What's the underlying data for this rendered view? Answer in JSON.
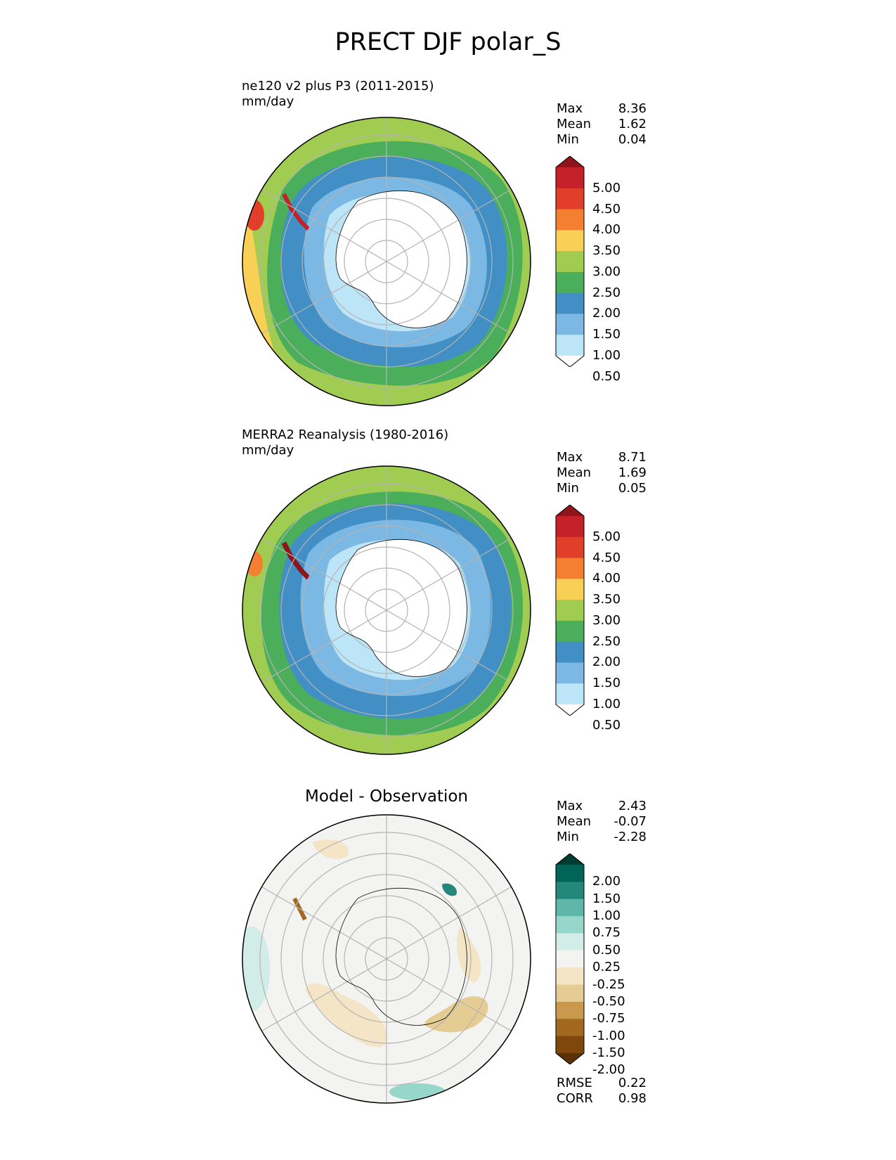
{
  "title": "PRECT DJF polar_S",
  "panels": [
    {
      "id": "test",
      "label_line1": "ne120 v2 plus P3 (2011-2015)",
      "label_line2": "mm/day",
      "stats": [
        {
          "name": "Max",
          "value": "8.36"
        },
        {
          "name": "Mean",
          "value": "1.62"
        },
        {
          "name": "Min",
          "value": "0.04"
        }
      ]
    },
    {
      "id": "ref",
      "label_line1": "MERRA2 Reanalysis (1980-2016)",
      "label_line2": "mm/day",
      "stats": [
        {
          "name": "Max",
          "value": "8.71"
        },
        {
          "name": "Mean",
          "value": "1.69"
        },
        {
          "name": "Min",
          "value": "0.05"
        }
      ]
    },
    {
      "id": "diff",
      "title": "Model - Observation",
      "stats": [
        {
          "name": "Max",
          "value": "2.43"
        },
        {
          "name": "Mean",
          "value": "-0.07"
        },
        {
          "name": "Min",
          "value": "-2.28"
        }
      ],
      "metrics": [
        {
          "name": "RMSE",
          "value": "0.22"
        },
        {
          "name": "CORR",
          "value": "0.98"
        }
      ]
    }
  ],
  "colorbars": {
    "precip": {
      "ticks": [
        "5.00",
        "4.50",
        "4.00",
        "3.50",
        "3.00",
        "2.50",
        "2.00",
        "1.50",
        "1.00",
        "0.50"
      ],
      "colors_top_to_bottom": [
        "#8e1519",
        "#c4212a",
        "#e23f2b",
        "#f57f31",
        "#f7d055",
        "#a0cc51",
        "#4bae5b",
        "#418fc4",
        "#7cb8e4",
        "#bde5f8",
        "#ffffff"
      ]
    },
    "diff": {
      "ticks": [
        "2.00",
        "1.50",
        "1.00",
        "0.75",
        "0.50",
        "0.25",
        "-0.25",
        "-0.50",
        "-0.75",
        "-1.00",
        "-1.50",
        "-2.00"
      ],
      "colors_top_to_bottom": [
        "#013c30",
        "#016456",
        "#23887a",
        "#5fb7aa",
        "#97d6ca",
        "#d2ece8",
        "#f3f3f1",
        "#f3e5c6",
        "#e5cc93",
        "#c99a4d",
        "#a36820",
        "#7f470b",
        "#5a3206"
      ]
    }
  },
  "chart_data": [
    {
      "type": "heatmap",
      "title": "ne120 v2 plus P3 (2011-2015)",
      "units": "mm/day",
      "projection": "south polar stereographic",
      "levels": [
        0.5,
        1.0,
        1.5,
        2.0,
        2.5,
        3.0,
        3.5,
        4.0,
        4.5,
        5.0
      ],
      "stats": {
        "max": 8.36,
        "mean": 1.62,
        "min": 0.04
      }
    },
    {
      "type": "heatmap",
      "title": "MERRA2 Reanalysis (1980-2016)",
      "units": "mm/day",
      "projection": "south polar stereographic",
      "levels": [
        0.5,
        1.0,
        1.5,
        2.0,
        2.5,
        3.0,
        3.5,
        4.0,
        4.5,
        5.0
      ],
      "stats": {
        "max": 8.71,
        "mean": 1.69,
        "min": 0.05
      }
    },
    {
      "type": "heatmap",
      "title": "Model - Observation",
      "projection": "south polar stereographic",
      "levels": [
        -2.0,
        -1.5,
        -1.0,
        -0.75,
        -0.5,
        -0.25,
        0.25,
        0.5,
        0.75,
        1.0,
        1.5,
        2.0
      ],
      "stats": {
        "max": 2.43,
        "mean": -0.07,
        "min": -2.28
      },
      "metrics": {
        "rmse": 0.22,
        "corr": 0.98
      }
    }
  ]
}
